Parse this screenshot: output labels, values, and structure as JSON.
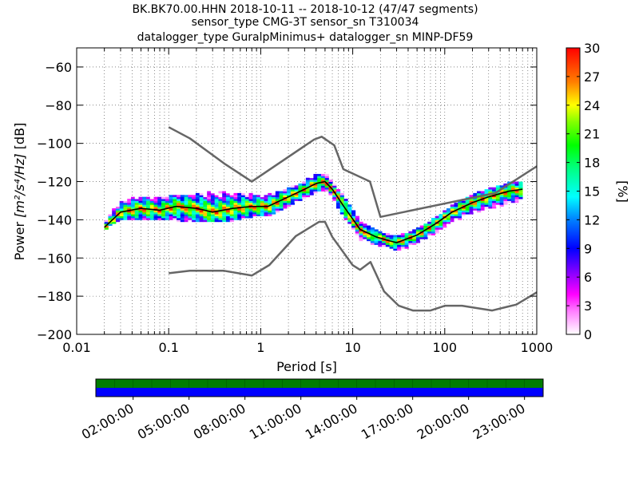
{
  "chart_data": [
    {
      "type": "heatmap",
      "title": {
        "line1": "BK.BK70.00.HHN   2018-10-11 -- 2018-10-12  (47/47 segments)",
        "line2": "sensor_type CMG-3T sensor_sn T310034",
        "line3": "datalogger_type GuralpMinimus+ datalogger_sn MINP-DF59"
      },
      "xlabel": "Period [s]",
      "ylabel_main": "Power ",
      "ylabel_units": "[m²/s⁴/Hz]",
      "ylabel_db": " [dB]",
      "x_scale": "log",
      "xlim": [
        0.01,
        1000
      ],
      "ylim": [
        -200,
        -50
      ],
      "x_ticks": [
        0.01,
        0.1,
        1,
        10,
        100,
        1000
      ],
      "x_tick_labels": [
        "0.01",
        "0.1",
        "1",
        "10",
        "100",
        "1000"
      ],
      "y_ticks": [
        -200,
        -180,
        -160,
        -140,
        -120,
        -100,
        -80,
        -60
      ],
      "y_tick_labels": [
        "−200",
        "−180",
        "−160",
        "−140",
        "−120",
        "−100",
        "−80",
        "−60"
      ],
      "grid": true,
      "colorbar": {
        "label": "[%]",
        "range": [
          0,
          30
        ],
        "ticks": [
          0,
          3,
          6,
          9,
          12,
          15,
          18,
          21,
          24,
          27,
          30
        ],
        "tick_labels": [
          "0",
          "3",
          "6",
          "9",
          "12",
          "15",
          "18",
          "21",
          "24",
          "27",
          "30"
        ],
        "colors": [
          "#ffffff",
          "#ff00ff",
          "#0000ff",
          "#00ffff",
          "#00ff00",
          "#ffff00",
          "#ff8000",
          "#ff0000"
        ]
      },
      "noise_models": [
        {
          "name": "high",
          "color": "#666666",
          "points": [
            [
              0.1,
              -91.5
            ],
            [
              0.17,
              -97.4
            ],
            [
              0.4,
              -110.5
            ],
            [
              0.8,
              -120
            ],
            [
              3.8,
              -98
            ],
            [
              4.6,
              -96.5
            ],
            [
              6.3,
              -101
            ],
            [
              7.9,
              -113.5
            ],
            [
              15.4,
              -120
            ],
            [
              20,
              -138.5
            ],
            [
              354.8,
              -126
            ],
            [
              1000,
              -112
            ]
          ]
        },
        {
          "name": "low",
          "color": "#666666",
          "points": [
            [
              0.1,
              -168
            ],
            [
              0.17,
              -166.7
            ],
            [
              0.4,
              -166.7
            ],
            [
              0.8,
              -169.2
            ],
            [
              1.24,
              -163.7
            ],
            [
              2.4,
              -148.6
            ],
            [
              4.3,
              -141.1
            ],
            [
              5,
              -141.1
            ],
            [
              6,
              -149
            ],
            [
              10,
              -163.8
            ],
            [
              12,
              -166.2
            ],
            [
              15.6,
              -162.1
            ],
            [
              21.9,
              -177.5
            ],
            [
              31.6,
              -185
            ],
            [
              45,
              -187.5
            ],
            [
              70,
              -187.5
            ],
            [
              101,
              -185
            ],
            [
              154,
              -185
            ],
            [
              328,
              -187.5
            ],
            [
              600,
              -184.4
            ],
            [
              1000,
              -178
            ]
          ]
        }
      ],
      "mode": {
        "name": "mode",
        "color": "#000000",
        "points": [
          [
            0.02,
            -144
          ],
          [
            0.03,
            -136
          ],
          [
            0.05,
            -134
          ],
          [
            0.08,
            -135
          ],
          [
            0.12,
            -133
          ],
          [
            0.2,
            -134
          ],
          [
            0.3,
            -136
          ],
          [
            0.5,
            -134
          ],
          [
            0.8,
            -133
          ],
          [
            1.2,
            -133
          ],
          [
            2,
            -128
          ],
          [
            3,
            -124
          ],
          [
            4,
            -121
          ],
          [
            5,
            -120
          ],
          [
            6,
            -124
          ],
          [
            8,
            -133
          ],
          [
            12,
            -145
          ],
          [
            18,
            -149
          ],
          [
            25,
            -151
          ],
          [
            30,
            -152
          ],
          [
            50,
            -148
          ],
          [
            80,
            -142
          ],
          [
            120,
            -136
          ],
          [
            200,
            -131
          ],
          [
            300,
            -128
          ],
          [
            500,
            -125
          ],
          [
            700,
            -124
          ]
        ]
      },
      "spread": [
        {
          "x": 0.02,
          "low": -145,
          "high": -140
        },
        {
          "x": 0.03,
          "low": -139,
          "high": -130
        },
        {
          "x": 0.05,
          "low": -140,
          "high": -128
        },
        {
          "x": 0.08,
          "low": -140,
          "high": -129
        },
        {
          "x": 0.12,
          "low": -140,
          "high": -127
        },
        {
          "x": 0.2,
          "low": -141,
          "high": -127
        },
        {
          "x": 0.3,
          "low": -141,
          "high": -125
        },
        {
          "x": 0.5,
          "low": -140,
          "high": -126
        },
        {
          "x": 0.8,
          "low": -138,
          "high": -127
        },
        {
          "x": 1.2,
          "low": -138,
          "high": -127
        },
        {
          "x": 2,
          "low": -133,
          "high": -124
        },
        {
          "x": 3,
          "low": -128,
          "high": -120
        },
        {
          "x": 4,
          "low": -125,
          "high": -116
        },
        {
          "x": 5,
          "low": -124,
          "high": -116
        },
        {
          "x": 6,
          "low": -128,
          "high": -120
        },
        {
          "x": 8,
          "low": -138,
          "high": -128
        },
        {
          "x": 12,
          "low": -150,
          "high": -141
        },
        {
          "x": 18,
          "low": -153,
          "high": -146
        },
        {
          "x": 25,
          "low": -155,
          "high": -148
        },
        {
          "x": 30,
          "low": -156,
          "high": -149
        },
        {
          "x": 50,
          "low": -152,
          "high": -145
        },
        {
          "x": 80,
          "low": -147,
          "high": -139
        },
        {
          "x": 120,
          "low": -141,
          "high": -133
        },
        {
          "x": 200,
          "low": -136,
          "high": -127
        },
        {
          "x": 300,
          "low": -134,
          "high": -124
        },
        {
          "x": 500,
          "low": -131,
          "high": -121
        },
        {
          "x": 700,
          "low": -130,
          "high": -120
        }
      ]
    },
    {
      "type": "timeline",
      "title": "",
      "time_tick_labels": [
        "02:00:00",
        "05:00:00",
        "08:00:00",
        "11:00:00",
        "14:00:00",
        "17:00:00",
        "20:00:00",
        "23:00:00"
      ],
      "time_tick_hours": [
        2,
        5,
        8,
        11,
        14,
        17,
        20,
        23
      ],
      "xlim_hours": [
        0,
        24
      ],
      "rows": [
        {
          "color": "#007d00",
          "coverage": [
            0,
            24
          ]
        },
        {
          "color": "#0000ff",
          "coverage": [
            0,
            24
          ]
        }
      ],
      "segment_divider_hours": [
        0,
        1,
        2,
        3,
        4,
        5,
        6,
        7,
        8,
        9,
        10,
        11,
        12,
        13,
        14,
        15,
        16,
        17,
        18,
        19,
        20,
        21,
        22,
        23,
        24
      ]
    }
  ]
}
